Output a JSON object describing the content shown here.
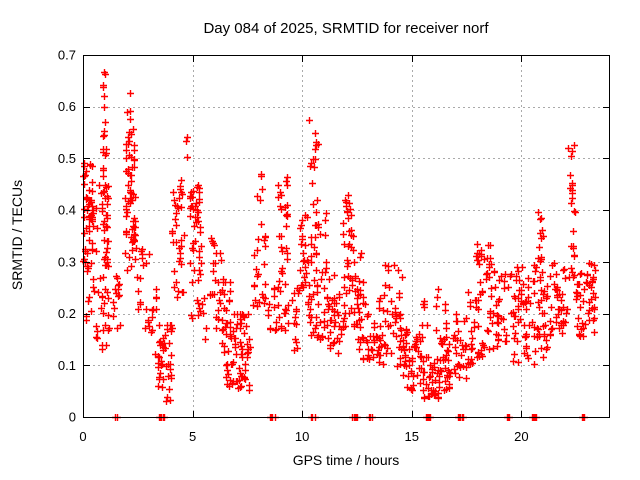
{
  "chart_data": {
    "type": "scatter",
    "title": "Day 084 of 2025, SRMTID for receiver norf",
    "xlabel": "GPS time / hours",
    "ylabel": "SRMTID / TECUs",
    "xlim": [
      0,
      24
    ],
    "ylim": [
      0,
      0.7
    ],
    "xticks": {
      "values": [
        0,
        5,
        10,
        15,
        20
      ],
      "labels": [
        "0",
        "5",
        "10",
        "15",
        "20"
      ]
    },
    "yticks": {
      "values": [
        0,
        0.1,
        0.2,
        0.3,
        0.4,
        0.5,
        0.6,
        0.7
      ],
      "labels": [
        "0",
        "0.1",
        "0.2",
        "0.3",
        "0.4",
        "0.5",
        "0.6",
        "0.7"
      ]
    },
    "grid": {
      "show": true,
      "color": "#aaaaaa",
      "dash": [
        2,
        3
      ]
    },
    "legend": {
      "show": false
    },
    "background": "#ffffff",
    "axis_color": "#000000",
    "marker": {
      "shape": "plus",
      "color": "#ff0000",
      "size": 7,
      "stroke_width": 1.4
    },
    "series": [
      {
        "name": "SRMTID",
        "cluster_format": [
          "x_min_hours",
          "x_max_hours",
          "y_min_TECUs",
          "y_max_TECUs",
          "count"
        ],
        "clusters": [
          [
            0.0,
            0.45,
            0.28,
            0.5,
            55
          ],
          [
            0.0,
            0.5,
            0.17,
            0.28,
            8
          ],
          [
            0.45,
            0.85,
            0.3,
            0.46,
            6
          ],
          [
            0.5,
            0.9,
            0.15,
            0.3,
            8
          ],
          [
            0.92,
            1.05,
            0.55,
            0.672,
            8
          ],
          [
            0.88,
            1.08,
            0.45,
            0.55,
            10
          ],
          [
            0.85,
            1.15,
            0.3,
            0.45,
            30
          ],
          [
            0.85,
            1.2,
            0.22,
            0.3,
            10
          ],
          [
            0.8,
            1.3,
            0.13,
            0.22,
            8
          ],
          [
            1.35,
            1.8,
            0.16,
            0.3,
            14
          ],
          [
            1.98,
            2.3,
            0.55,
            0.64,
            6
          ],
          [
            1.95,
            2.35,
            0.45,
            0.55,
            22
          ],
          [
            1.9,
            2.4,
            0.35,
            0.45,
            28
          ],
          [
            1.9,
            2.5,
            0.27,
            0.35,
            14
          ],
          [
            2.5,
            3.0,
            0.17,
            0.33,
            16
          ],
          [
            2.9,
            3.35,
            0.1,
            0.26,
            12
          ],
          [
            3.4,
            4.1,
            0.055,
            0.18,
            40
          ],
          [
            3.7,
            4.0,
            0.03,
            0.055,
            4
          ],
          [
            4.05,
            4.6,
            0.3,
            0.46,
            26
          ],
          [
            4.1,
            4.6,
            0.23,
            0.3,
            8
          ],
          [
            4.7,
            4.9,
            0.5,
            0.56,
            3
          ],
          [
            4.85,
            5.35,
            0.36,
            0.45,
            26
          ],
          [
            4.85,
            5.4,
            0.28,
            0.36,
            12
          ],
          [
            4.9,
            5.5,
            0.19,
            0.28,
            12
          ],
          [
            5.8,
            6.4,
            0.24,
            0.35,
            14
          ],
          [
            5.5,
            6.4,
            0.15,
            0.24,
            14
          ],
          [
            6.3,
            7.7,
            0.1,
            0.2,
            55
          ],
          [
            6.5,
            7.6,
            0.05,
            0.1,
            25
          ],
          [
            6.3,
            6.8,
            0.2,
            0.27,
            10
          ],
          [
            7.75,
            8.35,
            0.19,
            0.32,
            16
          ],
          [
            7.9,
            8.35,
            0.32,
            0.47,
            12
          ],
          [
            8.4,
            9.4,
            0.15,
            0.28,
            30
          ],
          [
            8.9,
            9.35,
            0.37,
            0.47,
            14
          ],
          [
            8.9,
            9.35,
            0.28,
            0.37,
            10
          ],
          [
            9.5,
            9.85,
            0.13,
            0.26,
            14
          ],
          [
            9.9,
            10.25,
            0.28,
            0.4,
            16
          ],
          [
            9.9,
            10.3,
            0.2,
            0.28,
            10
          ],
          [
            10.25,
            10.75,
            0.42,
            0.575,
            12
          ],
          [
            10.3,
            10.8,
            0.3,
            0.42,
            10
          ],
          [
            10.3,
            11.2,
            0.15,
            0.3,
            40
          ],
          [
            10.6,
            11.1,
            0.3,
            0.4,
            8
          ],
          [
            11.2,
            11.8,
            0.12,
            0.28,
            30
          ],
          [
            11.9,
            12.3,
            0.38,
            0.43,
            10
          ],
          [
            11.85,
            12.4,
            0.28,
            0.38,
            16
          ],
          [
            11.85,
            12.55,
            0.17,
            0.28,
            26
          ],
          [
            12.55,
            13.3,
            0.1,
            0.22,
            30
          ],
          [
            12.5,
            12.8,
            0.22,
            0.33,
            10
          ],
          [
            13.3,
            14.1,
            0.1,
            0.25,
            30
          ],
          [
            13.7,
            14.0,
            0.25,
            0.3,
            5
          ],
          [
            14.1,
            14.65,
            0.15,
            0.3,
            18
          ],
          [
            14.1,
            14.65,
            0.08,
            0.15,
            12
          ],
          [
            14.65,
            15.45,
            0.05,
            0.17,
            45
          ],
          [
            15.45,
            15.75,
            0.17,
            0.23,
            6
          ],
          [
            15.5,
            16.3,
            0.035,
            0.12,
            45
          ],
          [
            16.3,
            17.0,
            0.05,
            0.16,
            35
          ],
          [
            16.0,
            16.6,
            0.16,
            0.25,
            8
          ],
          [
            17.0,
            17.5,
            0.07,
            0.2,
            25
          ],
          [
            17.55,
            18.35,
            0.1,
            0.25,
            35
          ],
          [
            17.9,
            18.35,
            0.25,
            0.35,
            12
          ],
          [
            18.4,
            19.4,
            0.13,
            0.3,
            45
          ],
          [
            18.4,
            18.6,
            0.3,
            0.35,
            4
          ],
          [
            19.5,
            20.4,
            0.13,
            0.3,
            45
          ],
          [
            19.6,
            20.3,
            0.1,
            0.13,
            6
          ],
          [
            20.75,
            21.0,
            0.3,
            0.4,
            12
          ],
          [
            20.5,
            21.0,
            0.2,
            0.3,
            14
          ],
          [
            20.4,
            21.0,
            0.1,
            0.2,
            14
          ],
          [
            21.0,
            21.6,
            0.13,
            0.3,
            30
          ],
          [
            21.6,
            22.1,
            0.15,
            0.3,
            25
          ],
          [
            22.1,
            22.45,
            0.44,
            0.53,
            8
          ],
          [
            22.1,
            22.45,
            0.33,
            0.44,
            10
          ],
          [
            22.15,
            22.5,
            0.25,
            0.33,
            8
          ],
          [
            22.45,
            23.35,
            0.15,
            0.3,
            40
          ],
          [
            23.0,
            23.35,
            0.2,
            0.3,
            10
          ],
          [
            1.48,
            1.58,
            0,
            0,
            3
          ],
          [
            3.48,
            3.72,
            0,
            0,
            10
          ],
          [
            8.52,
            8.78,
            0,
            0,
            6
          ],
          [
            10.42,
            10.58,
            0,
            0,
            4
          ],
          [
            12.22,
            12.52,
            0,
            0,
            6
          ],
          [
            13.02,
            13.22,
            0,
            0,
            10
          ],
          [
            15.62,
            15.85,
            0,
            0,
            10
          ],
          [
            17.08,
            17.32,
            0,
            0,
            10
          ],
          [
            19.32,
            19.46,
            0,
            0,
            4
          ],
          [
            20.48,
            20.68,
            0,
            0,
            10
          ],
          [
            22.72,
            22.88,
            0,
            0,
            4
          ]
        ]
      }
    ]
  }
}
